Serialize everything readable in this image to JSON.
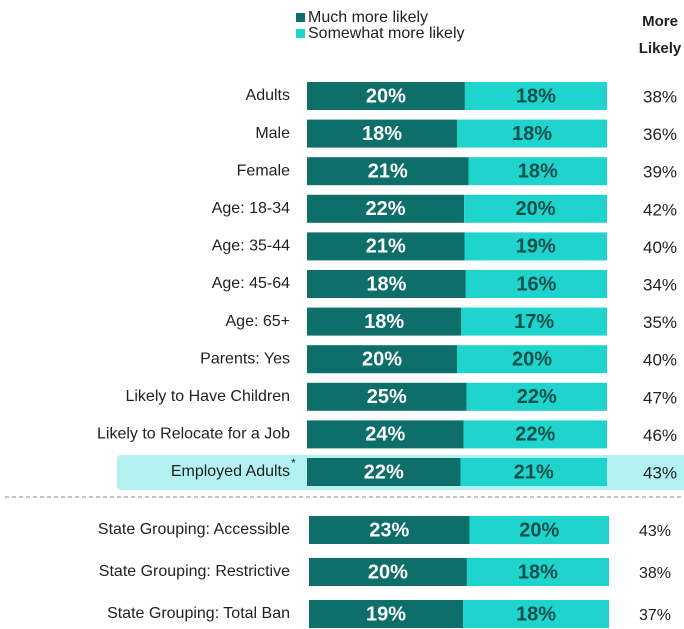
{
  "chart_data": {
    "type": "bar",
    "orientation": "horizontal",
    "stacking": "percent",
    "categories": [
      "Adults",
      "Male",
      "Female",
      "Age: 18-34",
      "Age: 35-44",
      "Age: 45-64",
      "Age: 65+",
      "Parents: Yes",
      "Likely to Have Children",
      "Likely to Relocate for a Job",
      "Employed Adults",
      "State Grouping: Accessible",
      "State Grouping: Restrictive",
      "State Grouping: Total Ban"
    ],
    "series": [
      {
        "name": "Much more likely",
        "color": "#0e6e69",
        "values": [
          20,
          18,
          21,
          22,
          21,
          18,
          18,
          20,
          25,
          24,
          22,
          23,
          20,
          19
        ],
        "value_labels": [
          "20%",
          "18%",
          "21%",
          "22%",
          "21%",
          "18%",
          "18%",
          "20%",
          "25%",
          "24%",
          "22%",
          "23%",
          "20%",
          "19%"
        ]
      },
      {
        "name": "Somewhat more likely",
        "color": "#1fd4cc",
        "values": [
          18,
          18,
          18,
          20,
          19,
          16,
          17,
          20,
          22,
          22,
          21,
          20,
          18,
          18
        ],
        "value_labels": [
          "18%",
          "18%",
          "18%",
          "20%",
          "19%",
          "16%",
          "17%",
          "20%",
          "22%",
          "22%",
          "21%",
          "20%",
          "18%",
          "18%"
        ]
      }
    ],
    "totals": {
      "name": "More Likely",
      "values": [
        38,
        36,
        39,
        42,
        40,
        34,
        35,
        40,
        47,
        46,
        43,
        43,
        38,
        37
      ],
      "value_labels": [
        "38%",
        "36%",
        "39%",
        "42%",
        "40%",
        "34%",
        "35%",
        "40%",
        "47%",
        "46%",
        "43%",
        "43%",
        "38%",
        "37%"
      ]
    },
    "highlighted_category": "Employed Adults",
    "annotation": "*",
    "highlight_color": "#b3f0f0"
  }
}
